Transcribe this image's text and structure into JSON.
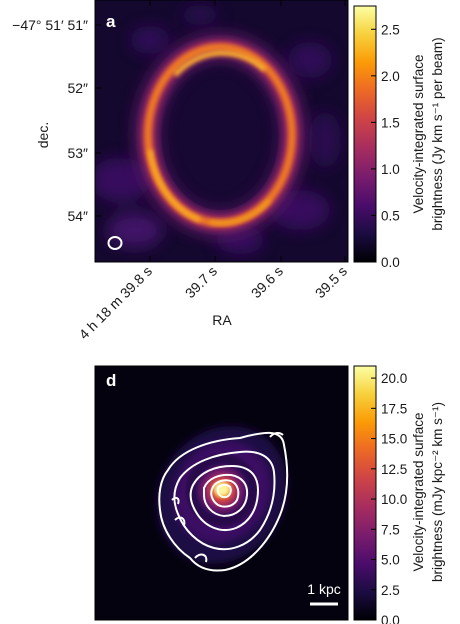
{
  "chart_data": [
    {
      "type": "heatmap",
      "panel_label": "a",
      "xlabel": "RA",
      "ylabel": "dec.",
      "x_ticks": [
        "4 h 18 m 39.8 s",
        "39.7 s",
        "39.6 s",
        "39.5 s"
      ],
      "y_ticks": [
        "−47° 51′ 51″",
        "52″",
        "53″",
        "54″"
      ],
      "colorbar": {
        "label_line1": "Velocity-integrated surface",
        "label_line2": "brightness (Jy km s⁻¹ per beam)",
        "ticks": [
          "0.0",
          "0.5",
          "1.0",
          "1.5",
          "2.0",
          "2.5"
        ],
        "tick_values": [
          0.0,
          0.5,
          1.0,
          1.5,
          2.0,
          2.5
        ],
        "range": [
          0.0,
          2.75
        ],
        "colormap": "inferno"
      },
      "feature": "Einstein ring",
      "beam_marker": "ellipse, lower-left"
    },
    {
      "type": "heatmap",
      "panel_label": "d",
      "colorbar": {
        "label_line1": "Velocity-integrated surface",
        "label_line2": "brightness (mJy kpc⁻² km s⁻¹)",
        "ticks": [
          "0.0",
          "2.5",
          "5.0",
          "7.5",
          "10.0",
          "12.5",
          "15.0",
          "17.5",
          "20.0"
        ],
        "tick_values": [
          0.0,
          2.5,
          5.0,
          7.5,
          10.0,
          12.5,
          15.0,
          17.5,
          20.0
        ],
        "range": [
          0.0,
          21.0
        ],
        "colormap": "inferno"
      },
      "scale_bar": "1 kpc",
      "contours": "white"
    }
  ],
  "colors": {
    "inferno": [
      "#000004",
      "#1b0c41",
      "#4a0c6b",
      "#781c6d",
      "#a52c60",
      "#cf4446",
      "#ed6925",
      "#fb9b06",
      "#f7d13d",
      "#fcffa4"
    ],
    "ring_core": "#f4a11e",
    "background_dark": "#14082e"
  }
}
